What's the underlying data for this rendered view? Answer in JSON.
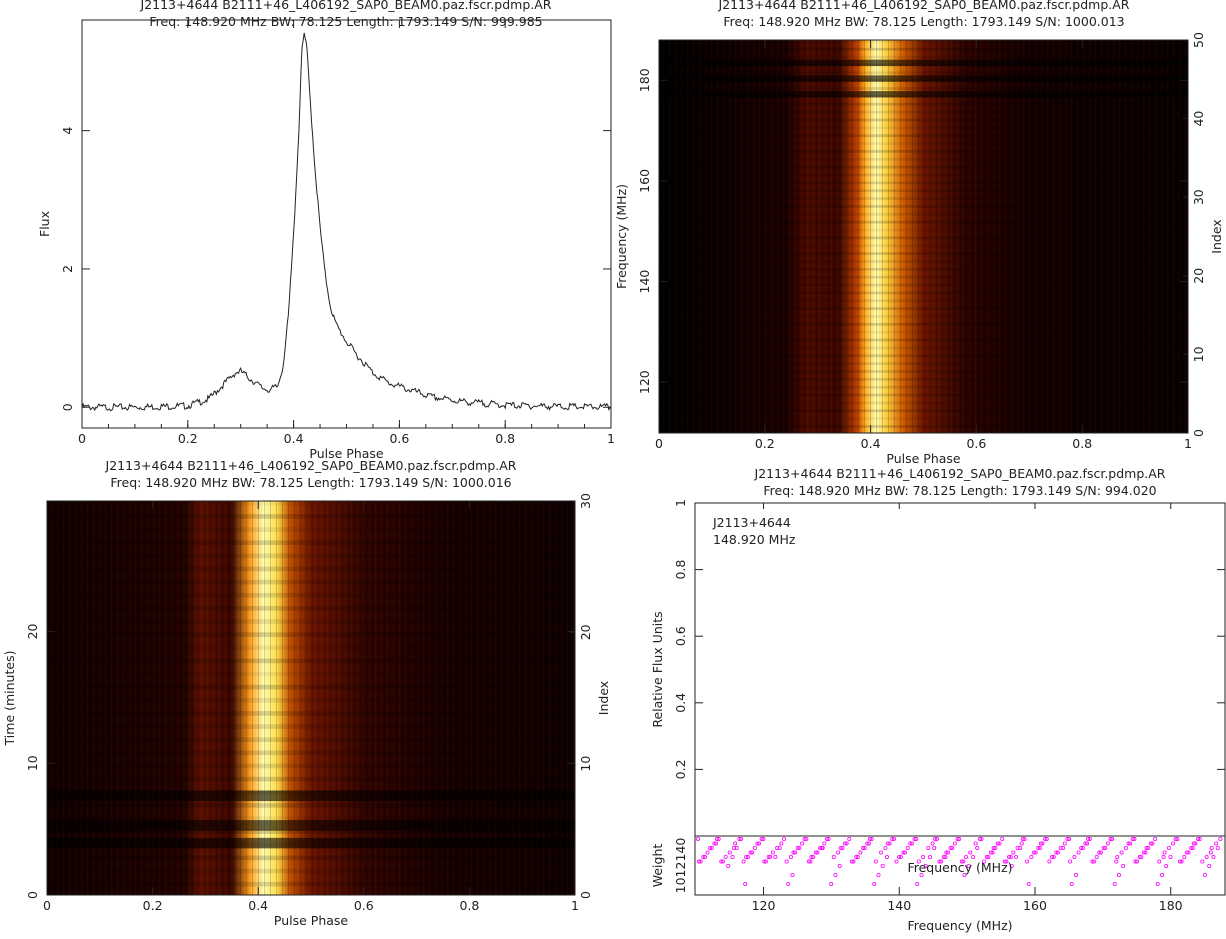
{
  "chart_data": [
    {
      "type": "line",
      "title": "J2113+4644  B2111+46_L406192_SAP0_BEAM0.paz.fscr.pdmp.AR",
      "subtitle": "Freq: 148.920 MHz BW: 78.125 Length: 1793.149 S/N: 999.985",
      "xlabel": "Pulse Phase",
      "ylabel": "Flux",
      "xlim": [
        0,
        1
      ],
      "ylim": [
        -0.3,
        5.6
      ],
      "xticks": [
        "0",
        "0.2",
        "0.4",
        "0.6",
        "0.8",
        "1"
      ],
      "yticks": [
        "0",
        "2",
        "4"
      ],
      "profile_points": [
        [
          0.0,
          0.0
        ],
        [
          0.1,
          0.0
        ],
        [
          0.2,
          0.02
        ],
        [
          0.24,
          0.12
        ],
        [
          0.27,
          0.35
        ],
        [
          0.29,
          0.5
        ],
        [
          0.3,
          0.52
        ],
        [
          0.32,
          0.4
        ],
        [
          0.34,
          0.28
        ],
        [
          0.355,
          0.25
        ],
        [
          0.37,
          0.3
        ],
        [
          0.38,
          0.6
        ],
        [
          0.39,
          1.3
        ],
        [
          0.4,
          2.5
        ],
        [
          0.41,
          4.0
        ],
        [
          0.415,
          5.1
        ],
        [
          0.42,
          5.4
        ],
        [
          0.425,
          5.2
        ],
        [
          0.43,
          4.6
        ],
        [
          0.44,
          3.5
        ],
        [
          0.45,
          2.6
        ],
        [
          0.46,
          1.9
        ],
        [
          0.47,
          1.45
        ],
        [
          0.48,
          1.2
        ],
        [
          0.5,
          0.95
        ],
        [
          0.52,
          0.75
        ],
        [
          0.55,
          0.5
        ],
        [
          0.58,
          0.35
        ],
        [
          0.62,
          0.25
        ],
        [
          0.66,
          0.15
        ],
        [
          0.72,
          0.08
        ],
        [
          0.8,
          0.03
        ],
        [
          0.9,
          0.01
        ],
        [
          1.0,
          0.0
        ]
      ],
      "color": "#222222"
    },
    {
      "type": "heatmap",
      "title": "J2113+4644  B2111+46_L406192_SAP0_BEAM0.paz.fscr.pdmp.AR",
      "subtitle": "Freq: 148.920 MHz BW: 78.125 Length: 1793.149 S/N: 1000.013",
      "xlabel": "Pulse Phase",
      "ylabel": "Frequency (MHz)",
      "y2label": "Index",
      "xlim": [
        0,
        1
      ],
      "ylim": [
        109.9,
        188.0
      ],
      "y2lim": [
        0,
        50
      ],
      "xticks": [
        "0",
        "0.2",
        "0.4",
        "0.6",
        "0.8",
        "1"
      ],
      "yticks": [
        "120",
        "140",
        "160",
        "180"
      ],
      "y2ticks": [
        "0",
        "10",
        "20",
        "30",
        "40",
        "50"
      ],
      "colormap": [
        "#000000",
        "#5a0a00",
        "#b43200",
        "#ff8c00",
        "#ffe040",
        "#ffffe0"
      ]
    },
    {
      "type": "heatmap",
      "title": "J2113+4644  B2111+46_L406192_SAP0_BEAM0.paz.fscr.pdmp.AR",
      "subtitle": "Freq: 148.920 MHz BW: 78.125 Length: 1793.149 S/N: 1000.016",
      "xlabel": "Pulse Phase",
      "ylabel": "Time (minutes)",
      "y2label": "Index",
      "xlim": [
        0,
        1
      ],
      "ylim": [
        0,
        29.9
      ],
      "y2lim": [
        0,
        30
      ],
      "xticks": [
        "0",
        "0.2",
        "0.4",
        "0.6",
        "0.8",
        "1"
      ],
      "yticks": [
        "0",
        "10",
        "20"
      ],
      "y2ticks": [
        "0",
        "10",
        "20",
        "30"
      ],
      "colormap": [
        "#000000",
        "#5a0a00",
        "#b43200",
        "#ff8c00",
        "#ffe040",
        "#ffffe0"
      ]
    },
    {
      "type": "scatter",
      "title": "J2113+4644  B2111+46_L406192_SAP0_BEAM0.paz.fscr.pdmp.AR",
      "subtitle": "Freq: 148.920 MHz BW: 78.125 Length: 1793.149 S/N: 994.020",
      "ylabel": "Relative Flux Units",
      "ylim": [
        0,
        1
      ],
      "yticks": [
        "0.2",
        "0.4",
        "0.6",
        "0.8",
        "1"
      ],
      "annotation": [
        "J2113+4644",
        "148.920 MHz"
      ],
      "weight_panel": {
        "ylabel": "Weight",
        "ytick_label": "1012140",
        "ytick_top": "140",
        "inner_xlabel": "Frequency (MHz)",
        "xlabel": "Frequency (MHz)",
        "xlim": [
          109.9,
          188.0
        ],
        "xticks": [
          "120",
          "140",
          "160",
          "180"
        ],
        "marker_color": "#ff00ff"
      }
    }
  ]
}
